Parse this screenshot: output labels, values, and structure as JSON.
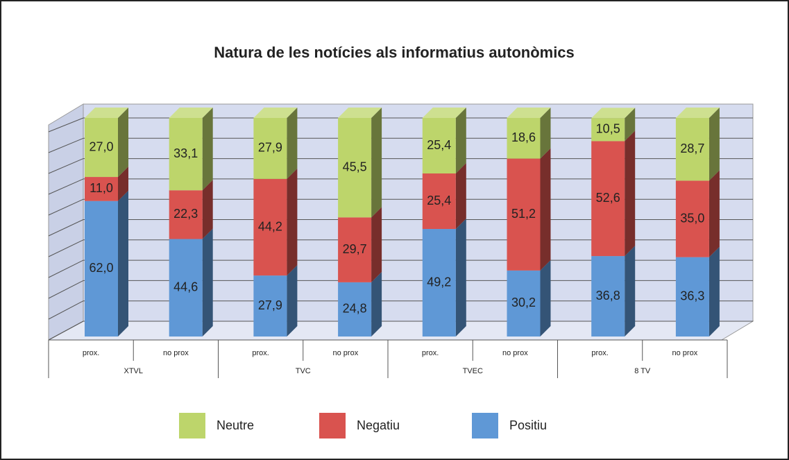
{
  "chart_data": {
    "type": "bar3d-stacked",
    "title": "Natura de les notícies als informatius autonòmics",
    "categories": [
      "prox.",
      "no prox",
      "prox.",
      "no prox",
      "prox.",
      "no prox",
      "prox.",
      "no prox"
    ],
    "groups": [
      "XTVL",
      "TVC",
      "TVEC",
      "8 TV"
    ],
    "series": [
      {
        "name": "Positiu",
        "color": "#5f98d6",
        "values": [
          62.0,
          44.6,
          27.9,
          24.8,
          49.2,
          30.2,
          36.8,
          36.3
        ],
        "value_labels": [
          "62,0",
          "44,6",
          "27,9",
          "24,8",
          "49,2",
          "30,2",
          "36,8",
          "36,3"
        ]
      },
      {
        "name": "Negatiu",
        "color": "#d9534f",
        "values": [
          11.0,
          22.3,
          44.2,
          29.7,
          25.4,
          51.2,
          52.6,
          35.0
        ],
        "value_labels": [
          "11,0",
          "22,3",
          "44,2",
          "29,7",
          "25,4",
          "51,2",
          "52,6",
          "35,0"
        ]
      },
      {
        "name": "Neutre",
        "color": "#bdd56b",
        "values": [
          27.0,
          33.1,
          27.9,
          45.5,
          25.4,
          18.6,
          10.5,
          28.7
        ],
        "value_labels": [
          "27,0",
          "33,1",
          "27,9",
          "45,5",
          "25,4",
          "18,6",
          "10,5",
          "28,7"
        ]
      }
    ],
    "ylim": [
      0,
      100
    ],
    "yticks": [
      0,
      10,
      20,
      30,
      40,
      50,
      60,
      70,
      80,
      90,
      100
    ],
    "grid": true
  }
}
